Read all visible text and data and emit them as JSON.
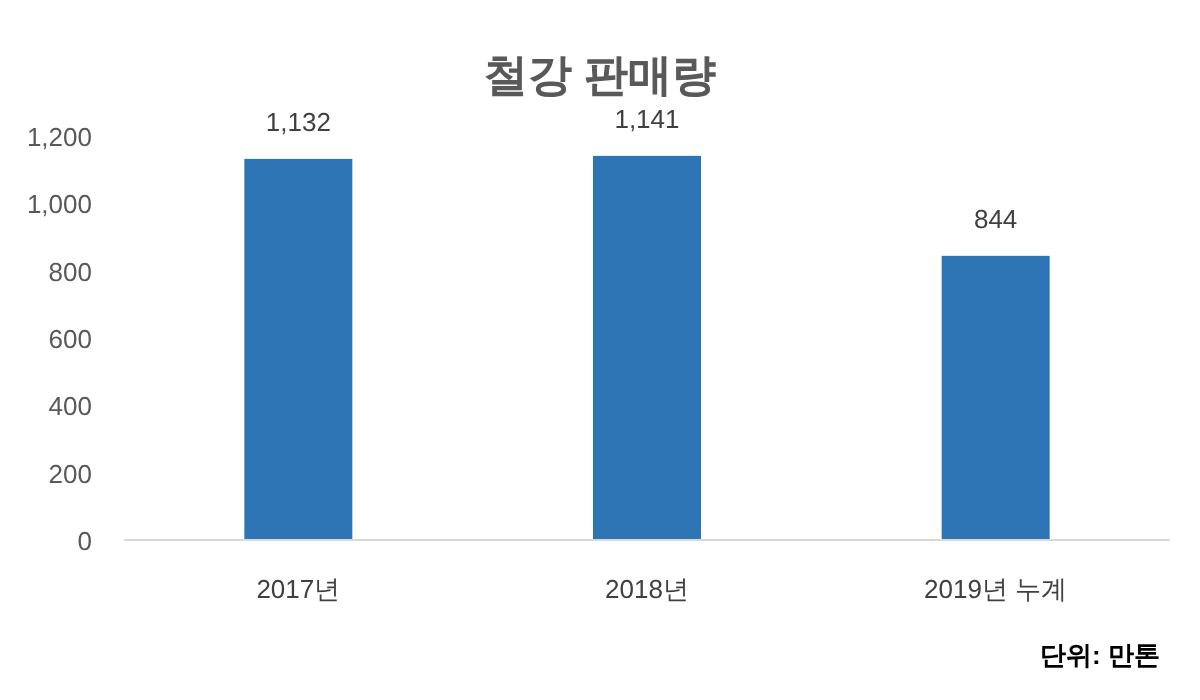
{
  "chart_data": {
    "type": "bar",
    "title": "철강 판매량",
    "categories": [
      "2017년",
      "2018년",
      "2019년 누계"
    ],
    "values": [
      1132,
      1141,
      844
    ],
    "color": "#2e75b6",
    "ylim": [
      0,
      1200
    ],
    "yticks": [
      0,
      200,
      400,
      600,
      800,
      {
        "value": 1000,
        "label": "1,000"
      },
      {
        "value": 1200,
        "label": "1,200"
      }
    ],
    "data_labels": true,
    "value_labels": [
      "1,132",
      "1,141",
      "844"
    ],
    "grid": false,
    "annotations": [
      "단위: 만톤"
    ]
  }
}
